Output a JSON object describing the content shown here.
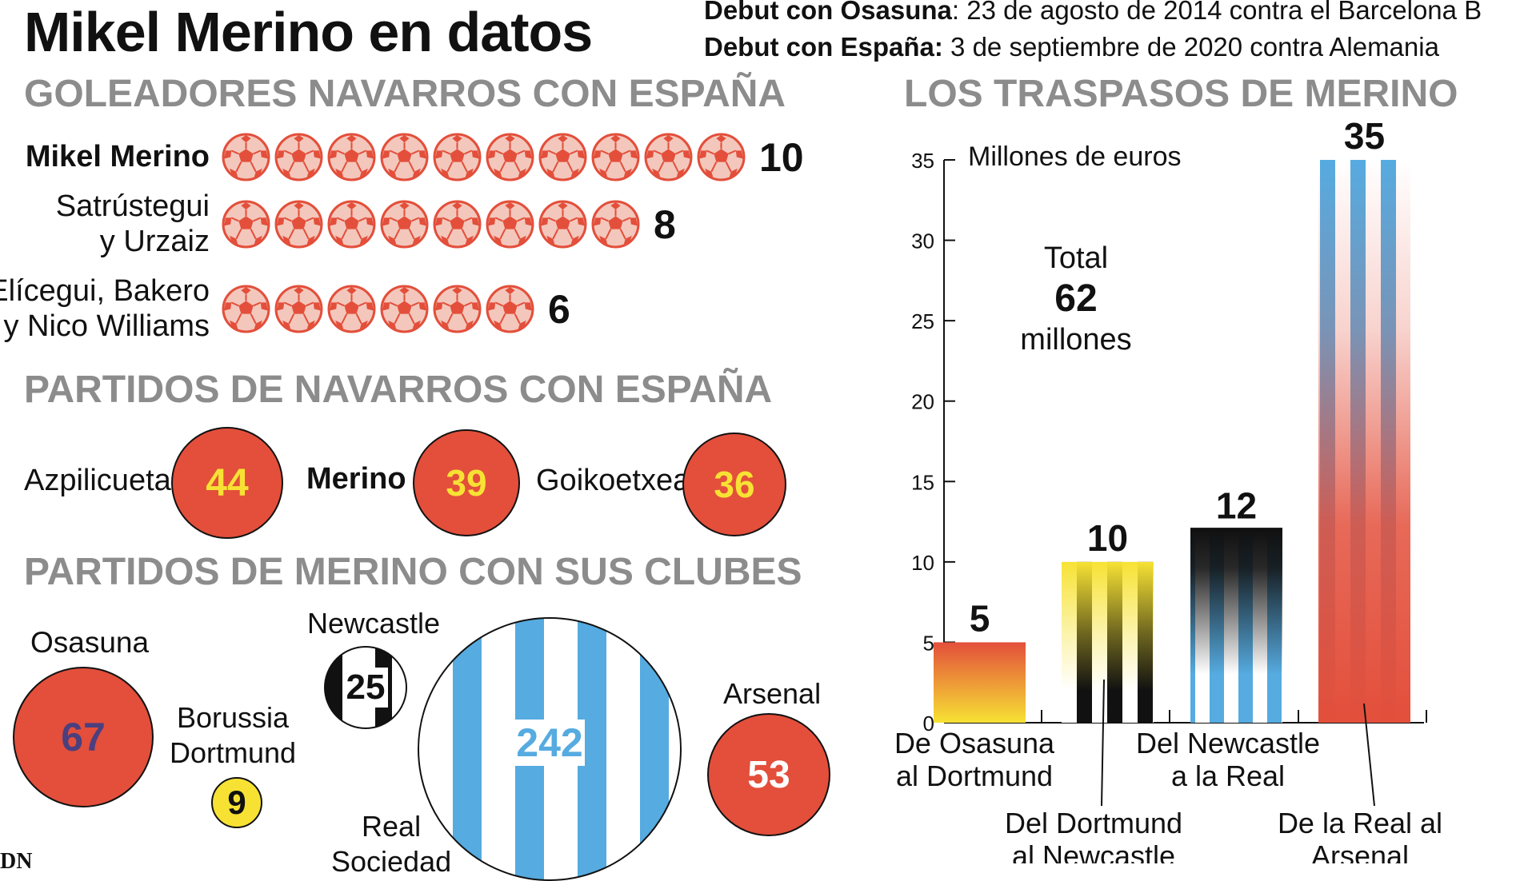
{
  "title": "Mikel Merino en datos",
  "debut": {
    "osasuna_label": "Debut con Osasuna",
    "osasuna_text": ": 23 de agosto de 2014 contra el Barcelona B",
    "spain_label": "Debut con España:",
    "spain_text": " 3 de septiembre de 2020 contra Alemania"
  },
  "scorers": {
    "heading": "GOLEADORES NAVARROS CON ESPAÑA",
    "rows": [
      {
        "name_lines": [
          "Mikel Merino"
        ],
        "goals": 10,
        "bold": true
      },
      {
        "name_lines": [
          "Satrústegui",
          "y Urzaiz"
        ],
        "goals": 8,
        "bold": false
      },
      {
        "name_lines": [
          "Elícegui, Bakero",
          "y Nico Williams"
        ],
        "goals": 6,
        "bold": false
      }
    ]
  },
  "spain_matches": {
    "heading": "PARTIDOS DE NAVARROS CON ESPAÑA",
    "players": [
      {
        "name": "Azpilicueta",
        "matches": "44"
      },
      {
        "name": "Merino",
        "matches": "39"
      },
      {
        "name": "Goikoetxea",
        "matches": "36"
      }
    ]
  },
  "club_matches": {
    "heading": "PARTIDOS DE MERINO CON SUS CLUBES",
    "osasuna": {
      "label": "Osasuna",
      "value": "67"
    },
    "dortmund": {
      "label_lines": [
        "Borussia",
        "Dortmund"
      ],
      "value": "9"
    },
    "newcastle": {
      "label": "Newcastle",
      "value": "25"
    },
    "real": {
      "label_lines": [
        "Real",
        "Sociedad"
      ],
      "value": "242"
    },
    "arsenal": {
      "label": "Arsenal",
      "value": "53"
    }
  },
  "transfers": {
    "heading": "LOS TRASPASOS DE MERINO",
    "total_label": "Total",
    "total_value": "62",
    "total_unit": "millones"
  },
  "chart_data": {
    "type": "bar",
    "title": "LOS TRASPASOS DE MERINO",
    "ylabel": "Millones de euros",
    "xlabel": "",
    "ylim": [
      0,
      35
    ],
    "yticks": [
      0,
      5,
      10,
      15,
      20,
      25,
      30,
      35
    ],
    "grid": false,
    "categories": [
      "De Osasuna al Dortmund",
      "Del Dortmund al Newcastle",
      "Del Newcastle a la Real",
      "De la Real al Arsenal"
    ],
    "values": [
      5,
      10,
      12,
      35
    ],
    "value_labels": [
      "5",
      "10",
      "12",
      "35"
    ],
    "category_lines": [
      [
        "De Osasuna",
        "al Dortmund"
      ],
      [
        "Del Dortmund",
        "al Newcastle"
      ],
      [
        "Del Newcastle",
        "a la Real"
      ],
      [
        "De la Real al",
        "Arsenal"
      ]
    ]
  },
  "footer": "DN",
  "colors": {
    "red": "#e34f3b",
    "yellow": "#f7e234",
    "sky_blue": "#56abe0",
    "heading_gray": "#8d8c8c",
    "purple_text": "#4b3f7e"
  }
}
